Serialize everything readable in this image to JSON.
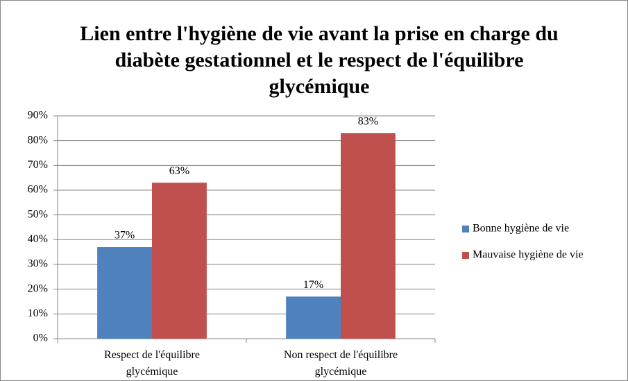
{
  "chart_data": {
    "type": "bar",
    "title": "Lien entre l'hygiène de vie avant la prise en charge du diabète gestationnel et le respect de l'équilibre glycémique",
    "categories": [
      "Respect de l'équilibre glycémique",
      "Non respect de l'équilibre glycémique"
    ],
    "series": [
      {
        "name": "Bonne hygiène de vie",
        "color": "#4f81bd",
        "values": [
          37,
          17
        ],
        "value_labels": [
          "37%",
          "17%"
        ]
      },
      {
        "name": "Mauvaise hygiène de vie",
        "color": "#c0504d",
        "values": [
          63,
          83
        ],
        "value_labels": [
          "63%",
          "83%"
        ]
      }
    ],
    "ylim": [
      0,
      90
    ],
    "yticks": [
      {
        "value": 0,
        "label": "0%"
      },
      {
        "value": 10,
        "label": "10%"
      },
      {
        "value": 20,
        "label": "20%"
      },
      {
        "value": 30,
        "label": "30%"
      },
      {
        "value": 40,
        "label": "40%"
      },
      {
        "value": 50,
        "label": "50%"
      },
      {
        "value": 60,
        "label": "60%"
      },
      {
        "value": 70,
        "label": "70%"
      },
      {
        "value": 80,
        "label": "80%"
      },
      {
        "value": 90,
        "label": "90%"
      }
    ],
    "grid": true,
    "legend": "right"
  }
}
